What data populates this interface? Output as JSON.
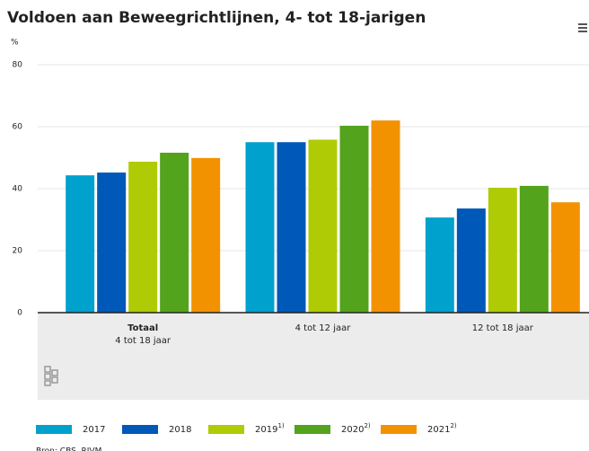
{
  "chart_data": {
    "type": "bar",
    "title": "Voldoen aan Beweegrichtlijnen, 4- tot 18-jarigen",
    "y_unit": "%",
    "categories": [
      "Totaal\n4 tot 18 jaar",
      "4 tot 12 jaar",
      "12 tot 18 jaar"
    ],
    "series": [
      {
        "name": "2017",
        "color": "#00a1cd",
        "values": [
          44.3,
          55.0,
          30.7
        ]
      },
      {
        "name": "2018",
        "color": "#0058b8",
        "values": [
          45.2,
          55.0,
          33.6
        ]
      },
      {
        "name": "2019",
        "note": "1)",
        "color": "#afcb05",
        "values": [
          48.7,
          55.8,
          40.3
        ]
      },
      {
        "name": "2020",
        "note": "2)",
        "color": "#53a31d",
        "values": [
          51.6,
          60.3,
          40.9
        ]
      },
      {
        "name": "2021",
        "note": "2)",
        "color": "#f39200",
        "values": [
          49.9,
          62.0,
          35.6
        ]
      }
    ],
    "ylim": [
      0,
      80
    ],
    "yticks": [
      0,
      20,
      40,
      60,
      80
    ],
    "grid": true,
    "source": "Bron: CBS, RIVM"
  }
}
